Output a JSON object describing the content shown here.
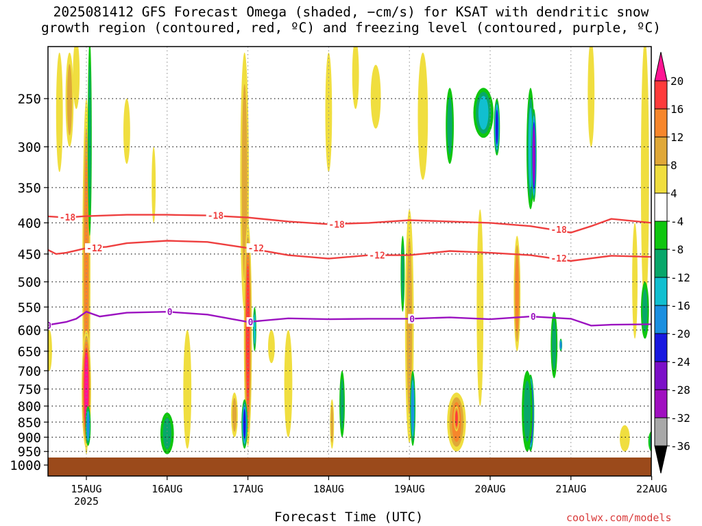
{
  "title": {
    "line1": "2025081412 GFS Forecast Omega (shaded, −cm/s) for KSAT with dendritic snow",
    "line2": "growth region (contoured, red, ºC) and freezing level (contoured, purple, ºC)"
  },
  "xlabel": "Forecast Time (UTC)",
  "credit": "coolwx.com/models",
  "chart_data": {
    "type": "heatmap",
    "x_ticks": [
      "15AUG",
      "16AUG",
      "17AUG",
      "18AUG",
      "19AUG",
      "20AUG",
      "21AUG",
      "22AUG"
    ],
    "x_year_label": "2025",
    "x_range_hours": [
      -12.5,
      168
    ],
    "y_ticks": [
      250,
      300,
      350,
      400,
      450,
      500,
      550,
      600,
      650,
      700,
      750,
      800,
      850,
      900,
      950,
      1000
    ],
    "y_range_hPa": [
      200,
      1000
    ],
    "y_scale": "log",
    "ground_pressure_hPa": 970,
    "grid": "dotted",
    "colorbar": {
      "labels": [
        "20",
        "16",
        "12",
        "8",
        "4",
        "-4",
        "-8",
        "-12",
        "-16",
        "-20",
        "-24",
        "-28",
        "-32",
        "-36"
      ],
      "boundaries": [
        20,
        16,
        12,
        8,
        4,
        -4,
        -8,
        -12,
        -16,
        -20,
        -24,
        -28,
        -32,
        -36
      ],
      "colors": [
        "#ff1493",
        "#ff3b3b",
        "#f7862b",
        "#e0a838",
        "#f0de3f",
        "#ffffff",
        "#0fc60f",
        "#08a76a",
        "#11bfd0",
        "#1b8fe0",
        "#1818e0",
        "#7c10c8",
        "#a010c0",
        "#a8a8a8",
        "#000000"
      ]
    },
    "contours": [
      {
        "label": "-18",
        "color": "#ee3f3f",
        "x": [
          -12.5,
          -6,
          0,
          12,
          24,
          36,
          48,
          60,
          72,
          84,
          96,
          108,
          120,
          132,
          144,
          150,
          156,
          168
        ],
        "p": [
          390,
          392,
          390,
          388,
          388,
          389,
          392,
          398,
          402,
          400,
          396,
          398,
          400,
          405,
          415,
          405,
          394,
          400
        ]
      },
      {
        "label": "-12",
        "color": "#ee3f3f",
        "x": [
          -12.5,
          -9,
          -6,
          -3,
          0,
          6,
          12,
          24,
          36,
          48,
          60,
          72,
          84,
          96,
          108,
          120,
          132,
          144,
          156,
          168
        ],
        "p": [
          440,
          450,
          448,
          444,
          440,
          438,
          432,
          428,
          430,
          440,
          452,
          458,
          452,
          452,
          445,
          448,
          452,
          462,
          453,
          455
        ]
      },
      {
        "label": "0",
        "color": "#9b12c0",
        "x": [
          -12.5,
          -6,
          -3,
          0,
          4,
          12,
          24,
          36,
          48,
          60,
          72,
          84,
          96,
          108,
          120,
          132,
          144,
          150,
          156,
          168
        ],
        "p": [
          590,
          582,
          575,
          560,
          570,
          562,
          560,
          566,
          582,
          574,
          576,
          575,
          575,
          572,
          576,
          570,
          575,
          590,
          588,
          587
        ]
      }
    ],
    "contour_label_positions": [
      {
        "label": "-18",
        "x": [
          -8,
          36,
          72,
          138
        ]
      },
      {
        "label": "-12",
        "x": [
          0,
          48,
          84,
          138
        ]
      },
      {
        "label": "0",
        "x": [
          -12,
          24,
          48,
          96,
          132
        ]
      }
    ]
  }
}
